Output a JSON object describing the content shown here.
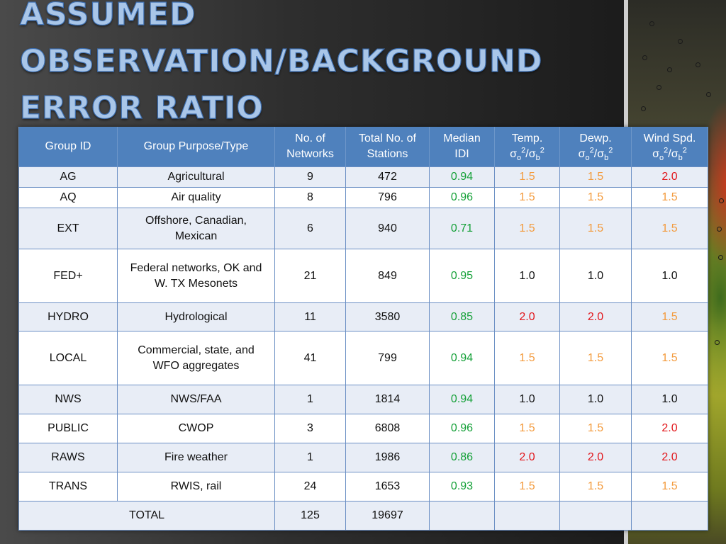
{
  "slide": {
    "title_lines": [
      "ASSUMED",
      "OBSERVATION/BACKGROUND",
      "ERROR RATIO"
    ]
  },
  "table": {
    "headers": {
      "group_id": "Group ID",
      "group_purpose": "Group Purpose/Type",
      "networks_l1": "No. of",
      "networks_l2": "Networks",
      "stations_l1": "Total No. of",
      "stations_l2": "Stations",
      "idi_l1": "Median",
      "idi_l2": "IDI",
      "temp_l1": "Temp.",
      "dewp_l1": "Dewp.",
      "wind_l1": "Wind Spd.",
      "sigma": "σ",
      "sub_o": "o",
      "sub_b": "b",
      "sup_2": "2",
      "slash": "/"
    },
    "colors": {
      "green": "#14a037",
      "orange": "#f39a3c",
      "red": "#e2161b",
      "black": "#111111"
    },
    "rows": [
      {
        "id": "AG",
        "purpose_l1": "Agricultural",
        "purpose_l2": "",
        "networks": "9",
        "stations": "472",
        "idi": "0.94",
        "temp": "1.5",
        "dewp": "1.5",
        "wind": "2.0"
      },
      {
        "id": "AQ",
        "purpose_l1": "Air quality",
        "purpose_l2": "",
        "networks": "8",
        "stations": "796",
        "idi": "0.96",
        "temp": "1.5",
        "dewp": "1.5",
        "wind": "1.5"
      },
      {
        "id": "EXT",
        "purpose_l1": "Offshore, Canadian,",
        "purpose_l2": "Mexican",
        "networks": "6",
        "stations": "940",
        "idi": "0.71",
        "temp": "1.5",
        "dewp": "1.5",
        "wind": "1.5"
      },
      {
        "id": "FED+",
        "purpose_l1": "Federal networks, OK and",
        "purpose_l2": "W. TX Mesonets",
        "networks": "21",
        "stations": "849",
        "idi": "0.95",
        "temp": "1.0",
        "dewp": "1.0",
        "wind": "1.0"
      },
      {
        "id": "HYDRO",
        "purpose_l1": "Hydrological",
        "purpose_l2": "",
        "networks": "11",
        "stations": "3580",
        "idi": "0.85",
        "temp": "2.0",
        "dewp": "2.0",
        "wind": "1.5"
      },
      {
        "id": "LOCAL",
        "purpose_l1": "Commercial, state, and",
        "purpose_l2": "WFO aggregates",
        "networks": "41",
        "stations": "799",
        "idi": "0.94",
        "temp": "1.5",
        "dewp": "1.5",
        "wind": "1.5"
      },
      {
        "id": "NWS",
        "purpose_l1": "NWS/FAA",
        "purpose_l2": "",
        "networks": "1",
        "stations": "1814",
        "idi": "0.94",
        "temp": "1.0",
        "dewp": "1.0",
        "wind": "1.0"
      },
      {
        "id": "PUBLIC",
        "purpose_l1": "CWOP",
        "purpose_l2": "",
        "networks": "3",
        "stations": "6808",
        "idi": "0.96",
        "temp": "1.5",
        "dewp": "1.5",
        "wind": "2.0"
      },
      {
        "id": "RAWS",
        "purpose_l1": "Fire weather",
        "purpose_l2": "",
        "networks": "1",
        "stations": "1986",
        "idi": "0.86",
        "temp": "2.0",
        "dewp": "2.0",
        "wind": "2.0"
      },
      {
        "id": "TRANS",
        "purpose_l1": "RWIS, rail",
        "purpose_l2": "",
        "networks": "24",
        "stations": "1653",
        "idi": "0.93",
        "temp": "1.5",
        "dewp": "1.5",
        "wind": "1.5"
      }
    ],
    "total": {
      "label": "TOTAL",
      "networks": "125",
      "stations": "19697"
    }
  }
}
